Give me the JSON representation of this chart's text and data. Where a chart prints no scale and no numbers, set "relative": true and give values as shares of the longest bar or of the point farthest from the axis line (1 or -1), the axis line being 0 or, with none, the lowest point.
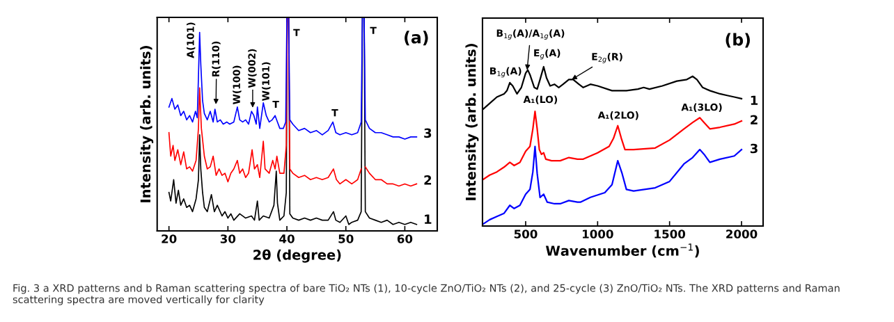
{
  "chart_data": [
    {
      "type": "line",
      "relative": true,
      "xlabel": "2θ (degree)",
      "ylabel": "Intensity (arb. units)",
      "xlim": [
        18,
        65.5
      ],
      "xticks": [
        20,
        30,
        40,
        50,
        60
      ],
      "tick_labels": "x",
      "grid": false,
      "legend": false,
      "series": [
        {
          "name": "1",
          "color": "#000000",
          "x": [
            20,
            20.3,
            20.8,
            21.2,
            21.6,
            22,
            22.5,
            23,
            23.5,
            24,
            24.6,
            25.0,
            25.2,
            25.4,
            25.7,
            26,
            26.5,
            27.2,
            27.7,
            28.2,
            29,
            29.5,
            30,
            30.5,
            31,
            32,
            33,
            34,
            34.5,
            35,
            35.3,
            36,
            37,
            37.8,
            38.2,
            38.4,
            38.8,
            39.5,
            39.9,
            40.05,
            40.3,
            40.5,
            41,
            42,
            43,
            44,
            45,
            46,
            47,
            47.9,
            48.3,
            49,
            50,
            50.5,
            51,
            52,
            52.6,
            52.8,
            53.1,
            53.3,
            54,
            55,
            56,
            57,
            58,
            59,
            60,
            61,
            62
          ],
          "values": [
            0.18,
            0.14,
            0.24,
            0.13,
            0.19,
            0.12,
            0.15,
            0.11,
            0.12,
            0.09,
            0.15,
            0.24,
            0.45,
            0.29,
            0.18,
            0.11,
            0.09,
            0.17,
            0.09,
            0.12,
            0.07,
            0.09,
            0.06,
            0.08,
            0.05,
            0.08,
            0.06,
            0.07,
            0.05,
            0.14,
            0.05,
            0.07,
            0.06,
            0.12,
            0.28,
            0.13,
            0.05,
            0.07,
            0.18,
            1.0,
            1.0,
            0.08,
            0.06,
            0.05,
            0.06,
            0.05,
            0.06,
            0.05,
            0.05,
            0.09,
            0.05,
            0.04,
            0.07,
            0.03,
            0.04,
            0.05,
            0.09,
            1.0,
            1.0,
            0.09,
            0.06,
            0.05,
            0.04,
            0.05,
            0.03,
            0.04,
            0.03,
            0.04,
            0.03
          ]
        },
        {
          "name": "2",
          "color": "#ff0000",
          "x": [
            20,
            20.3,
            20.7,
            21,
            21.5,
            22,
            22.5,
            23,
            23.5,
            24,
            24.6,
            25.0,
            25.2,
            25.5,
            26,
            26.5,
            27,
            27.5,
            28,
            28.5,
            29,
            29.5,
            30,
            30.5,
            31,
            31.6,
            32,
            32.5,
            33,
            33.5,
            34.1,
            34.5,
            35,
            35.4,
            36,
            36.3,
            37,
            37.6,
            38,
            38.3,
            38.8,
            39.5,
            39.9,
            40.05,
            40.3,
            40.5,
            41,
            42,
            43,
            44,
            45,
            46,
            47,
            47.9,
            48.4,
            49,
            50,
            51,
            52,
            52.6,
            52.8,
            53.1,
            53.3,
            54,
            55,
            56,
            57,
            58,
            59,
            60,
            61,
            62
          ],
          "values": [
            0.46,
            0.35,
            0.4,
            0.33,
            0.38,
            0.31,
            0.37,
            0.29,
            0.3,
            0.28,
            0.33,
            0.48,
            0.67,
            0.48,
            0.35,
            0.29,
            0.3,
            0.35,
            0.26,
            0.29,
            0.26,
            0.27,
            0.23,
            0.27,
            0.29,
            0.33,
            0.27,
            0.29,
            0.25,
            0.27,
            0.38,
            0.29,
            0.31,
            0.25,
            0.42,
            0.29,
            0.27,
            0.33,
            0.29,
            0.35,
            0.27,
            0.27,
            0.4,
            1.0,
            1.0,
            0.29,
            0.27,
            0.25,
            0.26,
            0.24,
            0.25,
            0.24,
            0.25,
            0.29,
            0.24,
            0.22,
            0.24,
            0.22,
            0.24,
            0.29,
            null,
            null,
            0.3,
            0.27,
            0.24,
            0.24,
            0.22,
            0.22,
            0.21,
            0.22,
            0.21,
            0.22
          ]
        },
        {
          "name": "3",
          "color": "#0000ff",
          "x": [
            20,
            20.5,
            21,
            21.5,
            22,
            22.5,
            23,
            23.5,
            24,
            24.5,
            24.8,
            25.0,
            25.2,
            25.4,
            25.7,
            26,
            26.5,
            27,
            27.5,
            27.8,
            28.2,
            28.7,
            29.2,
            29.8,
            30.3,
            31,
            31.6,
            32,
            32.5,
            33,
            33.5,
            34,
            34.4,
            34.8,
            35,
            35.4,
            36,
            36.5,
            37,
            37.5,
            38,
            38.4,
            38.8,
            39.4,
            39.8,
            40.0,
            40.3,
            40.5,
            41,
            42,
            43,
            44,
            45,
            46,
            47,
            47.8,
            48.3,
            49,
            50,
            51,
            52,
            52.6,
            52.8,
            53.1,
            53.3,
            54,
            55,
            56,
            57,
            58,
            59,
            60,
            61,
            62
          ],
          "values": [
            0.58,
            0.62,
            0.57,
            0.59,
            0.54,
            0.56,
            0.52,
            0.54,
            0.51,
            0.56,
            0.53,
            0.72,
            0.93,
            0.78,
            0.61,
            0.55,
            0.52,
            0.56,
            0.51,
            0.57,
            0.51,
            0.52,
            0.5,
            0.51,
            0.5,
            0.51,
            0.58,
            0.52,
            0.51,
            0.52,
            0.5,
            0.56,
            0.54,
            0.5,
            0.58,
            0.48,
            0.6,
            0.54,
            0.51,
            0.52,
            0.54,
            0.51,
            0.48,
            0.48,
            0.51,
            1.0,
            1.0,
            0.52,
            0.5,
            0.47,
            0.48,
            0.46,
            0.47,
            0.45,
            0.47,
            0.51,
            0.46,
            0.45,
            0.46,
            0.45,
            0.46,
            0.51,
            1.0,
            1.0,
            0.52,
            0.48,
            0.46,
            0.46,
            0.45,
            0.44,
            0.44,
            0.43,
            0.44,
            0.44
          ]
        }
      ],
      "annotations": [
        "(a)",
        {
          "text": "A(101)",
          "x": 25.2,
          "y": 0.93
        },
        "R(110)",
        {
          "text": "W(100)",
          "x": 31.6,
          "y": 0.58
        },
        "W(002)",
        {
          "text": "W(101)",
          "x": 36.2,
          "y": 0.6
        },
        {
          "text": "T",
          "x": 38,
          "y": 0.54
        },
        {
          "text": "T",
          "x": 40.1,
          "y": 1.0
        },
        {
          "text": "T",
          "x": 47.9,
          "y": 0.51
        },
        {
          "text": "T",
          "x": 53,
          "y": 1.0
        },
        "Fig. 3 a XRD patterns and b Raman scattering spectra of bare TiO₂ NTs (1), 10-cycle ZnO/TiO₂ NTs (2), and 25-cycle (3) ZnO/TiO₂ NTs. The XRD patterns and Raman scattering spectra are moved vertically for clarity"
      ]
    },
    {
      "type": "line",
      "relative": true,
      "xlabel": "Wavenumber (cm$^{−1}$)",
      "ylabel": "Intensity (arb. units)",
      "xlim": [
        200,
        2150
      ],
      "xticks": [
        500,
        1000,
        1500,
        2000
      ],
      "tick_labels": "x",
      "grid": false,
      "legend": false,
      "series": [
        {
          "name": "1",
          "color": "#000000",
          "x": [
            200,
            250,
            300,
            350,
            370,
            390,
            410,
            440,
            470,
            500,
            515,
            530,
            560,
            580,
            600,
            625,
            645,
            670,
            700,
            730,
            760,
            800,
            830,
            870,
            900,
            950,
            1000,
            1100,
            1200,
            1280,
            1320,
            1360,
            1450,
            1550,
            1620,
            1660,
            1690,
            1730,
            1780,
            1850,
            1900,
            1950,
            2000
          ],
          "values": [
            0.73,
            0.77,
            0.81,
            0.83,
            0.85,
            0.9,
            0.88,
            0.83,
            0.87,
            0.96,
            0.98,
            0.95,
            0.87,
            0.86,
            0.92,
            1.0,
            0.93,
            0.88,
            0.89,
            0.87,
            0.89,
            0.92,
            0.92,
            0.89,
            0.87,
            0.89,
            0.88,
            0.85,
            0.85,
            0.86,
            0.87,
            0.86,
            0.88,
            0.91,
            0.92,
            0.94,
            0.92,
            0.87,
            0.85,
            0.83,
            0.82,
            0.81,
            0.8
          ]
        },
        {
          "name": "2",
          "color": "#ff0000",
          "x": [
            200,
            250,
            300,
            350,
            390,
            420,
            460,
            500,
            530,
            550,
            565,
            580,
            595,
            610,
            625,
            640,
            680,
            740,
            800,
            860,
            900,
            1000,
            1080,
            1110,
            1140,
            1165,
            1190,
            1250,
            1400,
            1500,
            1600,
            1660,
            1710,
            1740,
            1780,
            1850,
            1950,
            2000
          ],
          "values": [
            0.29,
            0.32,
            0.34,
            0.37,
            0.4,
            0.38,
            0.4,
            0.47,
            0.5,
            0.61,
            0.72,
            0.61,
            0.48,
            0.45,
            0.46,
            0.42,
            0.41,
            0.41,
            0.43,
            0.42,
            0.42,
            0.46,
            0.5,
            0.55,
            0.63,
            0.55,
            0.48,
            0.48,
            0.49,
            0.54,
            0.61,
            0.65,
            0.68,
            0.65,
            0.61,
            0.62,
            0.64,
            0.66
          ]
        },
        {
          "name": "3",
          "color": "#0000ff",
          "x": [
            200,
            250,
            300,
            350,
            390,
            420,
            460,
            500,
            530,
            550,
            565,
            580,
            600,
            625,
            650,
            700,
            740,
            800,
            860,
            880,
            950,
            1050,
            1100,
            1140,
            1170,
            1200,
            1250,
            1400,
            1500,
            1600,
            1660,
            1710,
            1740,
            1780,
            1850,
            1950,
            2000
          ],
          "values": [
            0.01,
            0.04,
            0.06,
            0.08,
            0.13,
            0.11,
            0.13,
            0.2,
            0.23,
            0.34,
            0.5,
            0.33,
            0.18,
            0.2,
            0.15,
            0.14,
            0.14,
            0.16,
            0.15,
            0.15,
            0.18,
            0.21,
            0.26,
            0.41,
            0.33,
            0.23,
            0.22,
            0.24,
            0.28,
            0.39,
            0.43,
            0.48,
            0.45,
            0.4,
            0.42,
            0.44,
            0.48
          ]
        }
      ],
      "annotations": [
        "(b)",
        {
          "text": "B$_{1g}$(A)",
          "x": 390,
          "y": 0.9
        },
        {
          "text": "B$_{1g}$(A)/A$_{1g}$(A)",
          "x": 510,
          "y": 0.98
        },
        {
          "text": "E$_{g}$(A)",
          "x": 625,
          "y": 1.0
        },
        {
          "text": "E$_{2g}$(R)",
          "x": 820,
          "y": 0.92
        },
        {
          "text": "A₁(LO)",
          "x": 565,
          "y": 0.72
        },
        {
          "text": "A₁(2LO)",
          "x": 1140,
          "y": 0.63
        },
        {
          "text": "A₁(3LO)",
          "x": 1710,
          "y": 0.68
        }
      ]
    }
  ]
}
